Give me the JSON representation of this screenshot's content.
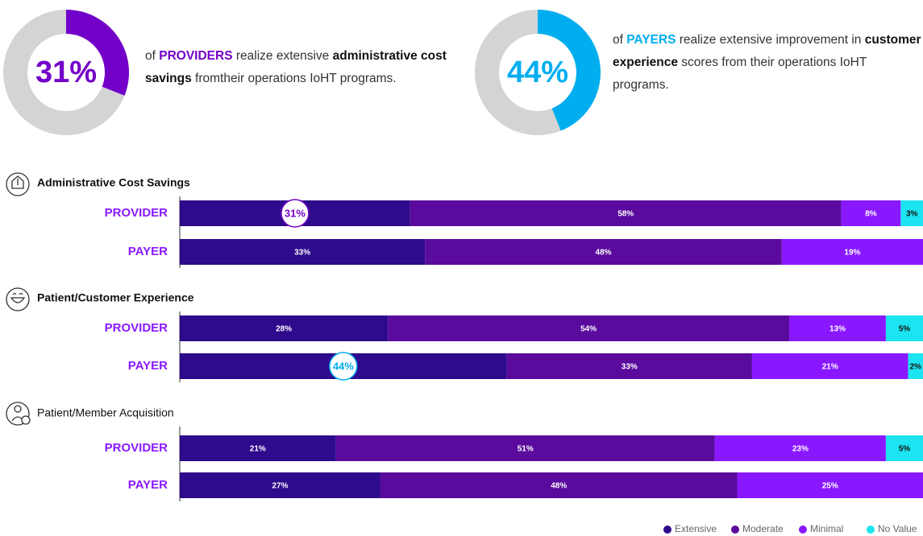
{
  "chart_data": [
    {
      "type": "donut",
      "value": 31,
      "value_label": "31%",
      "color": "#7300c8",
      "track_color": "#d4d4d4",
      "text": [
        "of ",
        "PROVIDERS",
        " realize extensive ",
        "administrative cost savings",
        " fromtheir operations IoHT programs."
      ]
    },
    {
      "type": "donut",
      "value": 44,
      "value_label": "44%",
      "color": "#00aeef",
      "track_color": "#d4d4d4",
      "text": [
        "of ",
        "PAYERS",
        " realize extensive improvement in ",
        "customer experience",
        " scores from their operations IoHT programs."
      ]
    },
    {
      "type": "stacked_bar",
      "title": "Administrative Cost Savings",
      "title_bold": true,
      "highlight": 0,
      "categories": [
        "PROVIDER",
        "PAYER"
      ],
      "xlim": [
        0,
        100
      ],
      "series": [
        {
          "name": "Extensive",
          "color": "#2e0a8c",
          "values": [
            31,
            33
          ],
          "value_labels": [
            "31%",
            "33%"
          ]
        },
        {
          "name": "Moderate",
          "color": "#5a0a9c",
          "values": [
            58,
            48
          ],
          "value_labels": [
            "58%",
            "48%"
          ]
        },
        {
          "name": "Minimal",
          "color": "#8a18ff",
          "values": [
            8,
            19
          ],
          "value_labels": [
            "8%",
            "19%"
          ]
        },
        {
          "name": "No Value",
          "color": "#1ce4f0",
          "values": [
            3,
            null
          ],
          "value_labels": [
            "3%",
            null
          ]
        }
      ]
    },
    {
      "type": "stacked_bar",
      "title": "Patient/Customer Experience",
      "title_bold": true,
      "highlight": 1,
      "categories": [
        "PROVIDER",
        "PAYER"
      ],
      "xlim": [
        0,
        100
      ],
      "series": [
        {
          "name": "Extensive",
          "color": "#2e0a8c",
          "values": [
            28,
            44
          ],
          "value_labels": [
            "28%",
            "44%"
          ]
        },
        {
          "name": "Moderate",
          "color": "#5a0a9c",
          "values": [
            54,
            33
          ],
          "value_labels": [
            "54%",
            "33%"
          ]
        },
        {
          "name": "Minimal",
          "color": "#8a18ff",
          "values": [
            13,
            21
          ],
          "value_labels": [
            "13%",
            "21%"
          ]
        },
        {
          "name": "No Value",
          "color": "#1ce4f0",
          "values": [
            5,
            2
          ],
          "value_labels": [
            "5%",
            "2%"
          ]
        }
      ]
    },
    {
      "type": "stacked_bar",
      "title": "Patient/Member Acquisition",
      "title_bold": false,
      "categories": [
        "PROVIDER",
        "PAYER"
      ],
      "xlim": [
        0,
        100
      ],
      "series": [
        {
          "name": "Extensive",
          "color": "#2e0a8c",
          "values": [
            21,
            27
          ],
          "value_labels": [
            "21%",
            "27%"
          ]
        },
        {
          "name": "Moderate",
          "color": "#5a0a9c",
          "values": [
            51,
            48
          ],
          "value_labels": [
            "51%",
            "48%"
          ]
        },
        {
          "name": "Minimal",
          "color": "#8a18ff",
          "values": [
            23,
            25
          ],
          "value_labels": [
            "23%",
            "25%"
          ]
        },
        {
          "name": "No Value",
          "color": "#1ce4f0",
          "values": [
            5,
            null
          ],
          "value_labels": [
            "5%",
            null
          ]
        }
      ]
    }
  ]
}
